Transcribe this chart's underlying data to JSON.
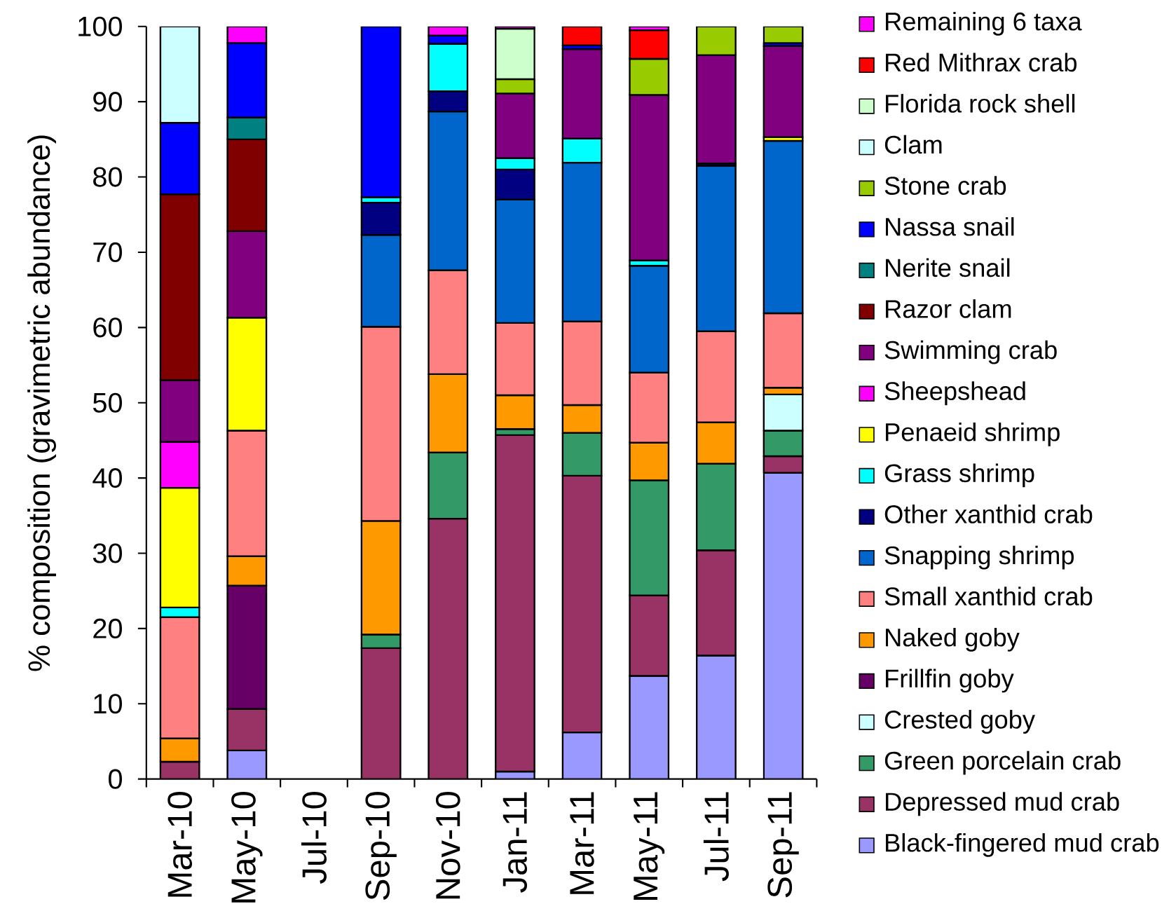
{
  "chart_data": {
    "type": "bar",
    "stacked": true,
    "ylabel": "% composition (gravimetric abundance)",
    "categories": [
      "Mar-10",
      "May-10",
      "Jul-10",
      "Sep-10",
      "Nov-10",
      "Jan-11",
      "Mar-11",
      "May-11",
      "Jul-11",
      "Sep-11"
    ],
    "ylim": [
      0,
      100
    ],
    "yticks": [
      0,
      10,
      20,
      30,
      40,
      50,
      60,
      70,
      80,
      90,
      100
    ],
    "legend": "right",
    "series": [
      {
        "name": "Black-fingered mud crab",
        "color": "#9999ff",
        "values": [
          null,
          3.8,
          null,
          null,
          null,
          1.0,
          6.2,
          13.7,
          16.4,
          40.7
        ]
      },
      {
        "name": "Depressed mud crab",
        "color": "#993366",
        "values": [
          2.3,
          5.5,
          null,
          17.4,
          34.6,
          44.7,
          34.1,
          10.7,
          14.0,
          2.2
        ]
      },
      {
        "name": "Green porcelain crab",
        "color": "#339966",
        "values": [
          null,
          null,
          null,
          1.8,
          8.8,
          0.8,
          5.7,
          15.3,
          11.5,
          3.4
        ]
      },
      {
        "name": "Crested goby",
        "color": "#ccffff",
        "values": [
          null,
          null,
          null,
          null,
          null,
          null,
          null,
          null,
          null,
          4.8
        ]
      },
      {
        "name": "Frillfin goby",
        "color": "#660066",
        "values": [
          null,
          16.4,
          null,
          null,
          null,
          null,
          null,
          null,
          null,
          null
        ]
      },
      {
        "name": "Naked goby",
        "color": "#ff9900",
        "values": [
          3.1,
          3.9,
          null,
          15.1,
          10.4,
          4.5,
          3.7,
          5.0,
          5.5,
          0.9
        ]
      },
      {
        "name": "Small xanthid crab",
        "color": "#ff8080",
        "values": [
          16.1,
          16.7,
          null,
          25.8,
          13.8,
          9.6,
          11.1,
          9.3,
          12.1,
          9.9
        ]
      },
      {
        "name": "Snapping shrimp",
        "color": "#0066cc",
        "values": [
          null,
          null,
          null,
          12.2,
          21.1,
          16.4,
          21.1,
          14.2,
          22.0,
          22.9
        ]
      },
      {
        "name": "Other xanthid crab",
        "color": "#000080",
        "values": [
          null,
          null,
          null,
          4.3,
          2.7,
          4.0,
          null,
          null,
          0.3,
          null
        ]
      },
      {
        "name": "Grass shrimp",
        "color": "#00ffff",
        "values": [
          1.3,
          null,
          null,
          0.7,
          6.3,
          1.5,
          3.2,
          0.7,
          null,
          null
        ]
      },
      {
        "name": "Penaeid shrimp",
        "color": "#ffff00",
        "values": [
          15.9,
          15.0,
          null,
          null,
          null,
          null,
          null,
          null,
          null,
          0.5
        ]
      },
      {
        "name": "Sheepshead",
        "color": "#ff00ff",
        "values": [
          6.1,
          null,
          null,
          null,
          null,
          null,
          null,
          null,
          null,
          null
        ]
      },
      {
        "name": "Swimming crab",
        "color": "#800080",
        "values": [
          8.2,
          11.5,
          null,
          null,
          null,
          8.6,
          11.9,
          22.0,
          14.4,
          12.1
        ]
      },
      {
        "name": "Razor clam",
        "color": "#800000",
        "values": [
          24.7,
          12.2,
          null,
          null,
          null,
          null,
          null,
          null,
          null,
          null
        ]
      },
      {
        "name": "Nerite snail",
        "color": "#008080",
        "values": [
          null,
          2.9,
          null,
          null,
          null,
          null,
          null,
          null,
          null,
          null
        ]
      },
      {
        "name": "Nassa snail",
        "color": "#0000ff",
        "values": [
          9.5,
          9.9,
          null,
          22.7,
          1.1,
          null,
          0.5,
          null,
          null,
          0.4
        ]
      },
      {
        "name": "Stone crab",
        "color": "#99cc00",
        "values": [
          null,
          null,
          null,
          null,
          null,
          1.9,
          null,
          4.8,
          3.8,
          2.2
        ]
      },
      {
        "name": "Clam",
        "color": "#ccffff",
        "values": [
          12.8,
          null,
          null,
          null,
          null,
          null,
          null,
          null,
          null,
          null
        ]
      },
      {
        "name": "Florida rock shell",
        "color": "#ccffcc",
        "values": [
          null,
          null,
          null,
          null,
          null,
          6.7,
          null,
          null,
          null,
          null
        ]
      },
      {
        "name": "Red Mithrax crab",
        "color": "#ff0000",
        "values": [
          null,
          null,
          null,
          null,
          null,
          null,
          2.5,
          3.8,
          null,
          null
        ]
      },
      {
        "name": "Remaining 6 taxa",
        "color": "#ff00ff",
        "values": [
          null,
          2.2,
          null,
          null,
          1.2,
          0.3,
          null,
          0.5,
          null,
          null
        ]
      }
    ]
  }
}
